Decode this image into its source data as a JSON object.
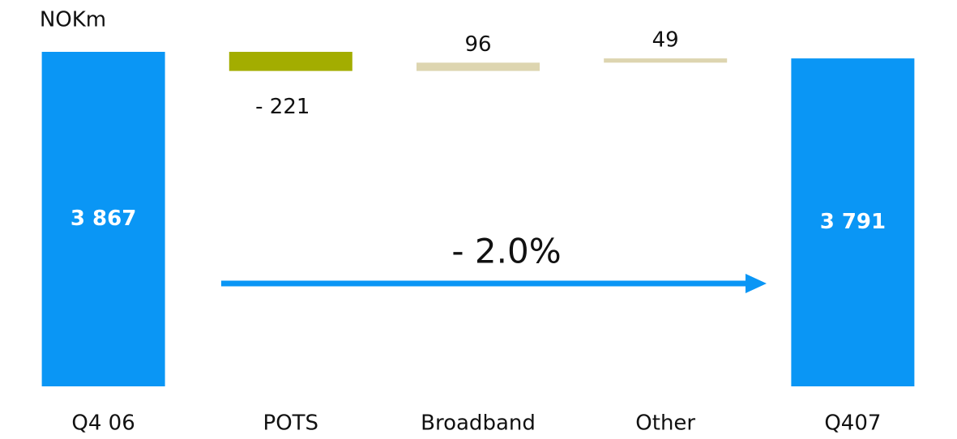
{
  "chart_data": {
    "type": "waterfall",
    "unit_label": "NOKm",
    "annotation": "- 2.0%",
    "categories": [
      "Q4 06",
      "POTS",
      "Broadband",
      "Other",
      "Q407"
    ],
    "values": [
      3867,
      -221,
      96,
      49,
      3791
    ],
    "value_labels": [
      "3 867",
      "- 221",
      "96",
      "49",
      "3 791"
    ],
    "colors": [
      "#0a96f5",
      "#a3ad00",
      "#ddd5b0",
      "#ddd5b0",
      "#0a96f5"
    ],
    "arrow_color": "#0a96f5"
  }
}
